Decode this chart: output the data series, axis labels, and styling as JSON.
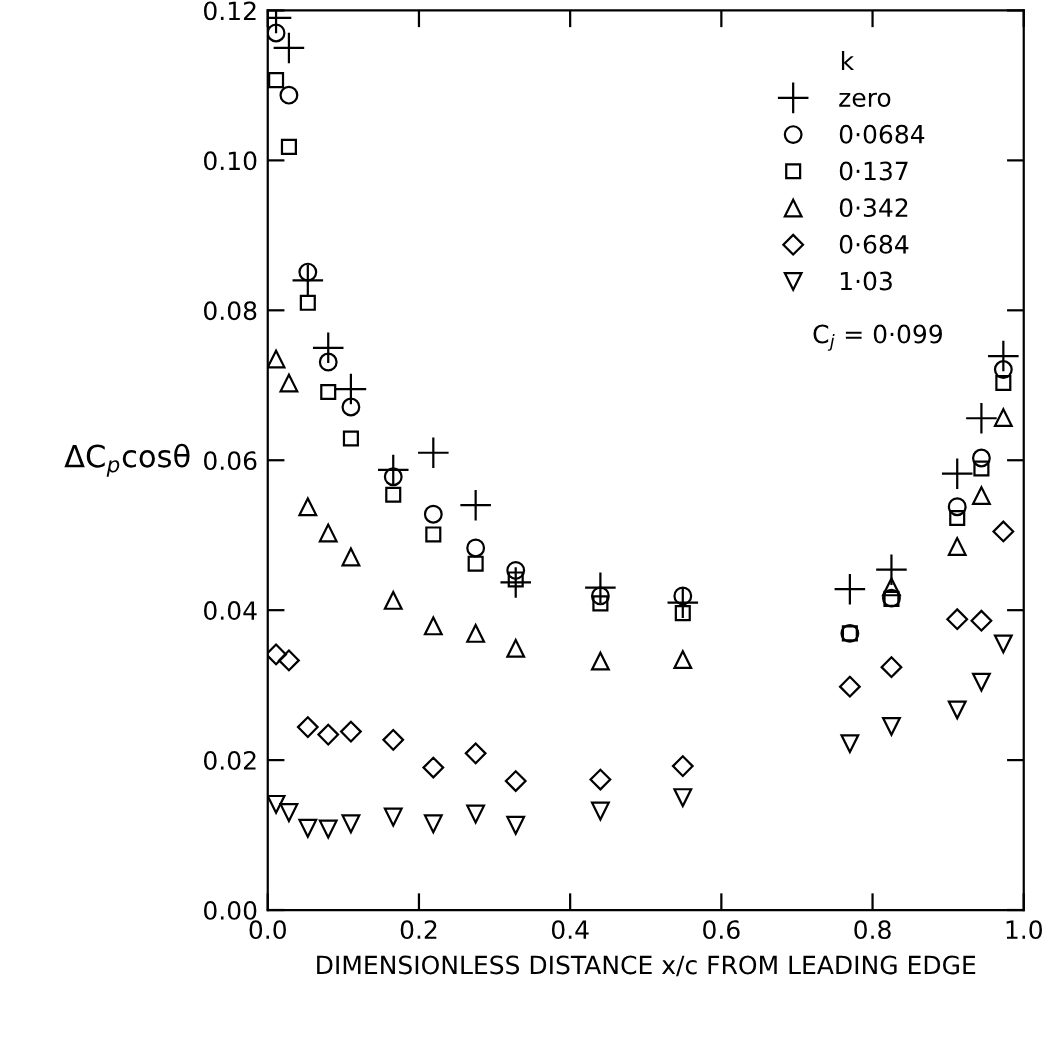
{
  "chart_data": {
    "type": "scatter",
    "xlabel": "DIMENSIONLESS DISTANCE x/c FROM LEADING EDGE",
    "ylabel": "ΔC$_{p}$cosθ",
    "legend_title": "k",
    "legend": "top right",
    "grid": false,
    "xlim": [
      0,
      1
    ],
    "ylim": [
      0,
      0.12
    ],
    "xticks": [
      {
        "value": 0,
        "label": "0.0"
      },
      0.2,
      0.4,
      0.6,
      0.8,
      {
        "value": 1,
        "label": "1.0"
      }
    ],
    "yticks": [
      {
        "value": 0,
        "label": "0.00"
      },
      0.02,
      0.04,
      0.06,
      0.08,
      {
        "value": 0.1,
        "label": "0.10"
      },
      0.12
    ],
    "annotations": [
      "C$_{j}$ = 0·099"
    ],
    "series": [
      {
        "name": "zero",
        "color": "#000000",
        "marker": "cross",
        "x": [
          0.011,
          0.028,
          0.053,
          0.08,
          0.11,
          0.166,
          0.219,
          0.275,
          0.328,
          0.44,
          0.549,
          0.77,
          0.825,
          0.912,
          0.944,
          0.973
        ],
        "values": [
          0.119,
          0.115,
          0.084,
          0.075,
          0.0695,
          0.0587,
          0.061,
          0.054,
          0.0437,
          0.043,
          0.041,
          0.0428,
          0.0454,
          0.0582,
          0.0656,
          0.0739
        ]
      },
      {
        "name": "0·0684",
        "color": "#000000",
        "marker": "circle",
        "x": [
          0.011,
          0.028,
          0.053,
          0.08,
          0.11,
          0.166,
          0.219,
          0.275,
          0.328,
          0.44,
          0.549,
          0.77,
          0.825,
          0.912,
          0.944,
          0.973
        ],
        "values": [
          0.117,
          0.1087,
          0.0851,
          0.0731,
          0.0671,
          0.0578,
          0.0528,
          0.0483,
          0.0453,
          0.0419,
          0.0419,
          0.0369,
          0.0416,
          0.0538,
          0.0603,
          0.0721
        ]
      },
      {
        "name": "0·137",
        "color": "#000000",
        "marker": "square",
        "x": [
          0.011,
          0.028,
          0.053,
          0.08,
          0.11,
          0.166,
          0.219,
          0.275,
          0.328,
          0.44,
          0.549,
          0.77,
          0.825,
          0.912,
          0.944,
          0.973
        ],
        "values": [
          0.1107,
          0.1018,
          0.081,
          0.0691,
          0.0629,
          0.0554,
          0.0501,
          0.0462,
          0.0441,
          0.0409,
          0.0396,
          0.0369,
          0.0415,
          0.0523,
          0.0589,
          0.0703
        ]
      },
      {
        "name": "0·342",
        "color": "#000000",
        "marker": "triangle",
        "x": [
          0.011,
          0.028,
          0.053,
          0.08,
          0.11,
          0.166,
          0.219,
          0.275,
          0.328,
          0.44,
          0.549,
          0.825,
          0.912,
          0.944,
          0.973
        ],
        "values": [
          0.0735,
          0.0703,
          0.0538,
          0.0503,
          0.0471,
          0.0413,
          0.0379,
          0.0369,
          0.0349,
          0.0332,
          0.0334,
          0.0431,
          0.0485,
          0.0553,
          0.0657
        ]
      },
      {
        "name": "0·684",
        "color": "#000000",
        "marker": "diamond",
        "x": [
          0.011,
          0.028,
          0.053,
          0.08,
          0.11,
          0.166,
          0.219,
          0.275,
          0.328,
          0.44,
          0.549,
          0.77,
          0.825,
          0.912,
          0.944,
          0.973
        ],
        "values": [
          0.0341,
          0.0333,
          0.0244,
          0.0234,
          0.0238,
          0.0227,
          0.019,
          0.0209,
          0.0172,
          0.0174,
          0.0192,
          0.0298,
          0.0324,
          0.0388,
          0.0386,
          0.0505
        ]
      },
      {
        "name": "1·03",
        "color": "#000000",
        "marker": "triangle_down",
        "x": [
          0.011,
          0.028,
          0.053,
          0.08,
          0.11,
          0.166,
          0.219,
          0.275,
          0.328,
          0.44,
          0.549,
          0.77,
          0.825,
          0.912,
          0.944,
          0.973
        ],
        "values": [
          0.0141,
          0.013,
          0.0109,
          0.0108,
          0.0115,
          0.0124,
          0.0115,
          0.0128,
          0.0113,
          0.0132,
          0.015,
          0.0222,
          0.0245,
          0.0267,
          0.0304,
          0.0355
        ]
      }
    ]
  }
}
